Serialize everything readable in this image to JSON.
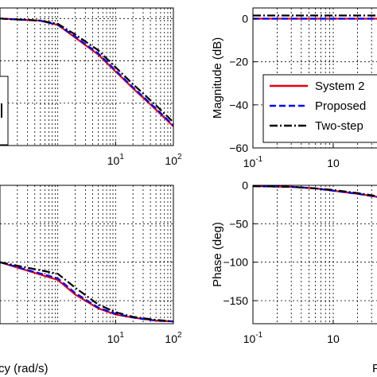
{
  "chart_data": [
    {
      "type": "line",
      "panel": "top-left",
      "xscale": "log",
      "xlim": [
        0.1,
        100
      ],
      "ylim": [
        -60,
        5
      ],
      "xticks": [
        {
          "exp": "1"
        },
        {
          "exp": "2"
        }
      ],
      "yticks": [],
      "xlabel": "",
      "ylabel": "",
      "grid": true,
      "series": [
        {
          "color": "#e8000b",
          "dash": "",
          "x": [
            0.1,
            0.5,
            1,
            2,
            5,
            10,
            20,
            50,
            100
          ],
          "y": [
            0,
            -1,
            -3,
            -9,
            -17,
            -25,
            -33,
            -43,
            -51
          ]
        },
        {
          "color": "#0000ff",
          "dash": "8,4",
          "x": [
            0.1,
            0.5,
            1,
            2,
            5,
            10,
            20,
            50,
            100
          ],
          "y": [
            0,
            -1,
            -3,
            -8.5,
            -16.5,
            -24.5,
            -32.5,
            -42.5,
            -50.5
          ]
        },
        {
          "color": "#000000",
          "dash": "10,3,2,3",
          "x": [
            0.1,
            0.5,
            1,
            2,
            5,
            10,
            20,
            50,
            100
          ],
          "y": [
            0,
            -1,
            -2.5,
            -7.5,
            -15,
            -23,
            -31,
            -41,
            -49
          ]
        }
      ]
    },
    {
      "type": "line",
      "panel": "top-right",
      "xscale": "log",
      "xlim": [
        0.1,
        10
      ],
      "ylim": [
        -60,
        5
      ],
      "xticks": [
        {
          "base": "10",
          "exp": "-1"
        },
        {
          "base": "10",
          "exp": ""
        }
      ],
      "yticks": [
        "0",
        "-20",
        "-40",
        "-60"
      ],
      "xlabel": "",
      "ylabel": "Magnitude (dB)",
      "grid": true,
      "legend_position": "center-right",
      "series": [
        {
          "name": "System 2",
          "color": "#e8000b",
          "dash": "",
          "x": [
            0.1,
            0.5,
            1,
            2,
            5,
            10
          ],
          "y": [
            0,
            0,
            0,
            0,
            0,
            0
          ]
        },
        {
          "name": "Proposed",
          "color": "#0000ff",
          "dash": "8,4",
          "x": [
            0.1,
            0.5,
            1,
            2,
            5,
            10
          ],
          "y": [
            0,
            0,
            0,
            0,
            0,
            0
          ]
        },
        {
          "name": "Two-step",
          "color": "#000000",
          "dash": "10,3,2,3",
          "x": [
            0.1,
            0.5,
            1,
            2,
            5,
            10
          ],
          "y": [
            1.5,
            1.5,
            1.5,
            1.5,
            1.5,
            1.5
          ]
        }
      ]
    },
    {
      "type": "line",
      "panel": "bottom-left",
      "xscale": "log",
      "xlim": [
        0.1,
        100
      ],
      "ylim": [
        -180,
        0
      ],
      "xticks": [
        {
          "exp": "1"
        },
        {
          "exp": "2"
        }
      ],
      "yticks": [],
      "xlabel": "cy (rad/s)",
      "ylabel": "",
      "grid": true,
      "series": [
        {
          "color": "#e8000b",
          "dash": "",
          "x": [
            0.1,
            1,
            2,
            5,
            10,
            20,
            50,
            100
          ],
          "y": [
            -100,
            -123,
            -142,
            -160,
            -168,
            -172,
            -176,
            -177
          ]
        },
        {
          "color": "#0000ff",
          "dash": "8,4",
          "x": [
            0.1,
            1,
            2,
            5,
            10,
            20,
            50,
            100
          ],
          "y": [
            -100,
            -121,
            -140,
            -159,
            -167,
            -172,
            -176,
            -177
          ]
        },
        {
          "color": "#000000",
          "dash": "10,3,2,3",
          "x": [
            0.1,
            1,
            2,
            5,
            10,
            20,
            50,
            100
          ],
          "y": [
            -100,
            -115,
            -133,
            -155,
            -165,
            -171,
            -175,
            -177
          ]
        }
      ]
    },
    {
      "type": "line",
      "panel": "bottom-right",
      "xscale": "log",
      "xlim": [
        0.1,
        10
      ],
      "ylim": [
        -180,
        0
      ],
      "xticks": [
        {
          "base": "10",
          "exp": "-1"
        },
        {
          "base": "10",
          "exp": ""
        }
      ],
      "yticks": [
        "0",
        "-50",
        "-100",
        "-150"
      ],
      "xlabel": "Fr",
      "ylabel": "Phase (deg)",
      "grid": true,
      "series": [
        {
          "color": "#e8000b",
          "dash": "",
          "x": [
            0.1,
            0.3,
            0.6,
            1,
            2,
            4,
            7,
            10
          ],
          "y": [
            -1,
            -2,
            -4,
            -7,
            -11,
            -16,
            -20,
            -24
          ]
        },
        {
          "color": "#0000ff",
          "dash": "8,4",
          "x": [
            0.1,
            0.3,
            0.6,
            1,
            2,
            4,
            7,
            10
          ],
          "y": [
            -1,
            -2,
            -4,
            -7,
            -11,
            -16,
            -20,
            -24
          ]
        },
        {
          "color": "#000000",
          "dash": "10,3,2,3",
          "x": [
            0.1,
            0.3,
            0.6,
            1,
            2,
            4,
            7,
            10
          ],
          "y": [
            -1,
            -2,
            -4,
            -6,
            -10,
            -15,
            -19,
            -23
          ]
        }
      ]
    }
  ]
}
